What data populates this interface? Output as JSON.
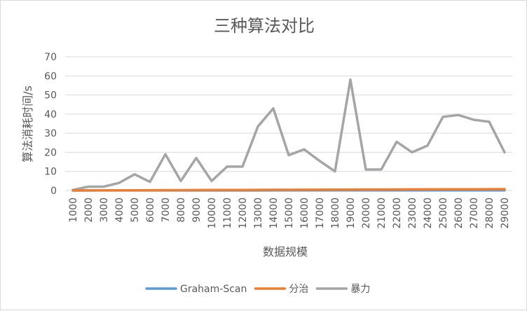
{
  "chart_data": {
    "type": "line",
    "title": "三种算法对比",
    "xlabel": "数据规模",
    "ylabel": "算法消耗时间/s",
    "ylim": [
      0,
      70
    ],
    "yticks": [
      0,
      10,
      20,
      30,
      40,
      50,
      60,
      70
    ],
    "grid": true,
    "legend": "bottom",
    "categories": [
      "1000",
      "2000",
      "3000",
      "4000",
      "5000",
      "6000",
      "7000",
      "8000",
      "9000",
      "10000",
      "11000",
      "12000",
      "13000",
      "14000",
      "15000",
      "16000",
      "17000",
      "18000",
      "19000",
      "20000",
      "21000",
      "22000",
      "23000",
      "24000",
      "25000",
      "26000",
      "27000",
      "28000",
      "29000"
    ],
    "series": [
      {
        "name": "Graham-Scan",
        "color": "#5b9bd5",
        "values": [
          0.01,
          0.02,
          0.02,
          0.02,
          0.03,
          0.03,
          0.03,
          0.04,
          0.04,
          0.04,
          0.05,
          0.05,
          0.05,
          0.06,
          0.06,
          0.06,
          0.07,
          0.07,
          0.07,
          0.08,
          0.08,
          0.08,
          0.09,
          0.09,
          0.09,
          0.1,
          0.1,
          0.1,
          0.11
        ]
      },
      {
        "name": "分治",
        "color": "#ed7d31",
        "values": [
          0.02,
          0.05,
          0.07,
          0.1,
          0.12,
          0.15,
          0.17,
          0.2,
          0.22,
          0.25,
          0.27,
          0.3,
          0.32,
          0.35,
          0.37,
          0.4,
          0.42,
          0.45,
          0.47,
          0.5,
          0.52,
          0.55,
          0.57,
          0.6,
          0.62,
          0.65,
          0.67,
          0.7,
          0.72
        ]
      },
      {
        "name": "暴力",
        "color": "#a5a5a5",
        "values": [
          0.3,
          2,
          2,
          4,
          8.5,
          4.5,
          19,
          5,
          17,
          5,
          12.5,
          12.5,
          33.5,
          43,
          18.5,
          21.5,
          15.5,
          10,
          58,
          11,
          11,
          25.5,
          20,
          23.5,
          38.5,
          39.5,
          37,
          36,
          20
        ]
      }
    ]
  }
}
